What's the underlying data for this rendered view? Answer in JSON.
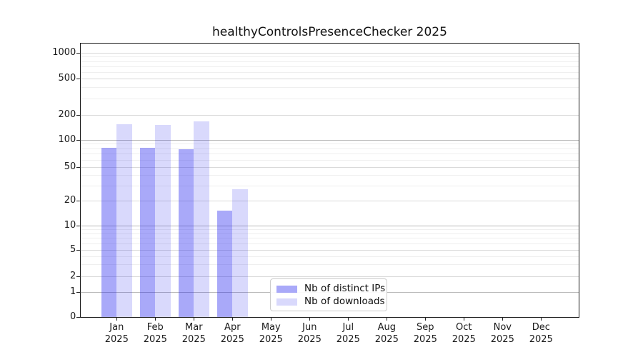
{
  "title": "healthyControlsPresenceChecker 2025",
  "chart_data": {
    "type": "bar",
    "title": "healthyControlsPresenceChecker 2025",
    "categories": [
      "Jan 2025",
      "Feb 2025",
      "Mar 2025",
      "Apr 2025",
      "May 2025",
      "Jun 2025",
      "Jul 2025",
      "Aug 2025",
      "Sep 2025",
      "Oct 2025",
      "Nov 2025",
      "Dec 2025"
    ],
    "series": [
      {
        "name": "Nb of distinct IPs",
        "color": "rgba(30,30,240,0.38)",
        "values": [
          82,
          81,
          79,
          15,
          0,
          0,
          0,
          0,
          0,
          0,
          0,
          0
        ]
      },
      {
        "name": "Nb of downloads",
        "color": "rgba(30,30,240,0.17)",
        "values": [
          155,
          152,
          167,
          27,
          0,
          0,
          0,
          0,
          0,
          0,
          0,
          0
        ]
      }
    ],
    "xlabel": "",
    "ylabel": "",
    "yscale": "log-like with linear segment near zero",
    "y_ticks": [
      0,
      1,
      2,
      5,
      10,
      20,
      50,
      100,
      200,
      500,
      1000
    ],
    "ylim": [
      0,
      1450
    ],
    "grid": "horizontal major + faint minor lines",
    "legend_position": "lower center inside plot"
  },
  "legend": {
    "items": [
      {
        "label": "Nb of distinct IPs"
      },
      {
        "label": "Nb of downloads"
      }
    ]
  },
  "colors": {
    "background": "#ffffff",
    "bar_distinct_ips": "rgba(30,30,240,0.38)",
    "bar_downloads": "rgba(30,30,240,0.17)",
    "grid_strong": "#b9b9b9",
    "grid_light": "#d9d9d9",
    "grid_minor": "#efefef",
    "spine": "#1a1a1a",
    "text": "#1a1a1a",
    "legend_border": "#cccccc"
  }
}
